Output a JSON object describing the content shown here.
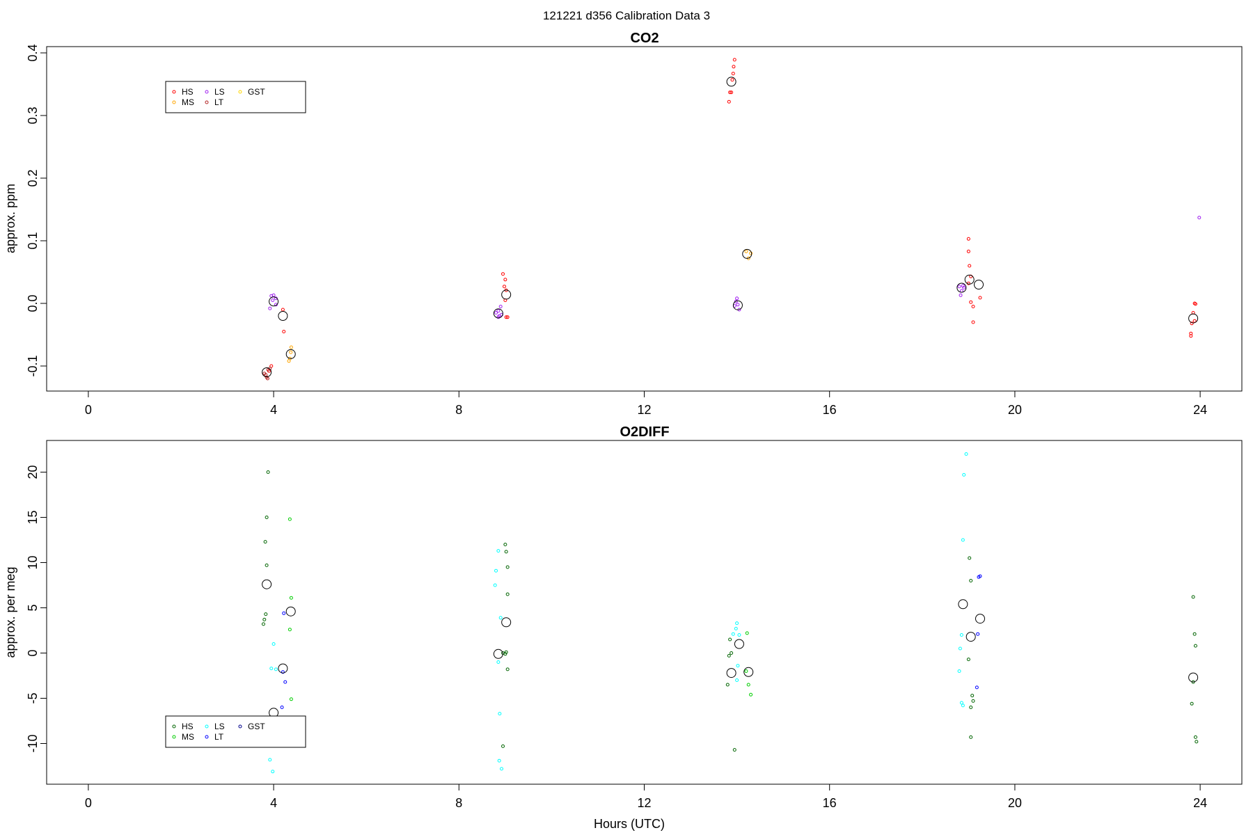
{
  "figure": {
    "title": "121221   d356   Calibration Data 3",
    "xlabel": "Hours (UTC)"
  },
  "chart_data": [
    {
      "type": "scatter",
      "title": "CO2",
      "xlabel": "",
      "ylabel": "approx. ppm",
      "xlim": [
        -0.9,
        24.9
      ],
      "ylim": [
        -0.14,
        0.41
      ],
      "xticks": [
        0,
        4,
        8,
        12,
        16,
        20,
        24
      ],
      "xtick_labels": [
        "0",
        "4",
        "8",
        "12",
        "16",
        "20",
        "24"
      ],
      "yticks": [
        -0.1,
        0.0,
        0.1,
        0.2,
        0.3,
        0.4
      ],
      "ytick_labels": [
        "-0.1",
        "0.0",
        "0.1",
        "0.2",
        "0.3",
        "0.4"
      ],
      "grid": false,
      "legend": {
        "placement": "top-left",
        "entries": [
          {
            "name": "HS",
            "color": "#ff0000"
          },
          {
            "name": "LS",
            "color": "#a020f0"
          },
          {
            "name": "GST",
            "color": "#ffd700"
          },
          {
            "name": "MS",
            "color": "#ffa500"
          },
          {
            "name": "LT",
            "color": "#b22222"
          }
        ]
      },
      "series": [
        {
          "name": "HS",
          "color": "#ff0000",
          "points": [
            [
              3.9,
              -0.108
            ],
            [
              3.95,
              -0.1
            ],
            [
              4.2,
              -0.01
            ],
            [
              4.22,
              -0.045
            ],
            [
              8.95,
              0.047
            ],
            [
              9.0,
              0.038
            ],
            [
              8.98,
              0.027
            ],
            [
              9.02,
              0.021
            ],
            [
              9.0,
              0.005
            ],
            [
              9.02,
              -0.022
            ],
            [
              9.05,
              -0.022
            ],
            [
              13.95,
              0.389
            ],
            [
              13.93,
              0.378
            ],
            [
              13.92,
              0.367
            ],
            [
              13.9,
              0.357
            ],
            [
              13.85,
              0.337
            ],
            [
              13.88,
              0.337
            ],
            [
              13.83,
              0.322
            ],
            [
              19.0,
              0.103
            ],
            [
              19.0,
              0.083
            ],
            [
              19.02,
              0.06
            ],
            [
              19.05,
              0.043
            ],
            [
              19.0,
              0.032
            ],
            [
              19.05,
              0.002
            ],
            [
              19.1,
              -0.03
            ],
            [
              19.25,
              0.009
            ],
            [
              19.1,
              -0.005
            ],
            [
              23.88,
              0.0
            ],
            [
              23.9,
              -0.001
            ],
            [
              23.85,
              -0.015
            ],
            [
              23.82,
              -0.032
            ],
            [
              23.8,
              -0.048
            ],
            [
              23.8,
              -0.052
            ],
            [
              23.88,
              -0.028
            ]
          ]
        },
        {
          "name": "MS",
          "color": "#ffa500",
          "points": [
            [
              4.33,
              -0.092
            ],
            [
              4.35,
              -0.088
            ],
            [
              4.37,
              -0.078
            ],
            [
              4.38,
              -0.07
            ],
            [
              14.2,
              0.083
            ],
            [
              14.25,
              0.072
            ],
            [
              14.3,
              0.08
            ]
          ]
        },
        {
          "name": "LS",
          "color": "#a020f0",
          "points": [
            [
              3.95,
              0.012
            ],
            [
              4.0,
              0.013
            ],
            [
              4.05,
              0.008
            ],
            [
              3.98,
              0.005
            ],
            [
              3.92,
              -0.008
            ],
            [
              4.05,
              -0.002
            ],
            [
              8.8,
              -0.015
            ],
            [
              8.85,
              -0.012
            ],
            [
              8.87,
              -0.02
            ],
            [
              8.9,
              -0.005
            ],
            [
              8.92,
              -0.018
            ],
            [
              8.85,
              -0.022
            ],
            [
              14.0,
              0.008
            ],
            [
              13.98,
              0.003
            ],
            [
              14.02,
              -0.002
            ],
            [
              14.05,
              -0.01
            ],
            [
              13.95,
              -0.004
            ],
            [
              18.8,
              0.027
            ],
            [
              18.85,
              0.02
            ],
            [
              18.9,
              0.025
            ],
            [
              18.83,
              0.013
            ],
            [
              18.88,
              0.028
            ],
            [
              23.98,
              0.137
            ]
          ]
        },
        {
          "name": "LT",
          "color": "#b22222",
          "points": [
            [
              3.8,
              -0.112
            ],
            [
              3.85,
              -0.118
            ],
            [
              3.88,
              -0.106
            ],
            [
              3.92,
              -0.104
            ],
            [
              3.83,
              -0.114
            ],
            [
              3.87,
              -0.12
            ]
          ]
        },
        {
          "name": "GST",
          "color": "#ffd700",
          "points": []
        }
      ],
      "means": [
        [
          3.85,
          -0.11
        ],
        [
          4.0,
          0.003
        ],
        [
          4.2,
          -0.02
        ],
        [
          4.37,
          -0.081
        ],
        [
          8.85,
          -0.016
        ],
        [
          9.02,
          0.014
        ],
        [
          13.88,
          0.354
        ],
        [
          14.02,
          -0.003
        ],
        [
          14.22,
          0.079
        ],
        [
          18.85,
          0.025
        ],
        [
          19.02,
          0.038
        ],
        [
          19.22,
          0.03
        ],
        [
          23.85,
          -0.024
        ]
      ]
    },
    {
      "type": "scatter",
      "title": "O2DIFF",
      "xlabel": "Hours (UTC)",
      "ylabel": "approx. per meg",
      "xlim": [
        -0.9,
        24.9
      ],
      "ylim": [
        -14.5,
        23.5
      ],
      "xticks": [
        0,
        4,
        8,
        12,
        16,
        20,
        24
      ],
      "xtick_labels": [
        "0",
        "4",
        "8",
        "12",
        "16",
        "20",
        "24"
      ],
      "yticks": [
        -10,
        -5,
        0,
        5,
        10,
        15,
        20
      ],
      "ytick_labels": [
        "-10",
        "-5",
        "0",
        "5",
        "10",
        "15",
        "20"
      ],
      "grid": false,
      "legend": {
        "placement": "bottom-left",
        "entries": [
          {
            "name": "HS",
            "color": "#006400"
          },
          {
            "name": "LS",
            "color": "#00ffff"
          },
          {
            "name": "GST",
            "color": "#00008b"
          },
          {
            "name": "MS",
            "color": "#00cd00"
          },
          {
            "name": "LT",
            "color": "#0000ff"
          }
        ]
      },
      "series": [
        {
          "name": "HS",
          "color": "#006400",
          "points": [
            [
              3.88,
              20.0
            ],
            [
              3.85,
              15.0
            ],
            [
              3.82,
              12.3
            ],
            [
              3.85,
              9.7
            ],
            [
              3.83,
              4.3
            ],
            [
              3.8,
              3.7
            ],
            [
              3.78,
              3.2
            ],
            [
              9.0,
              12.0
            ],
            [
              9.02,
              11.2
            ],
            [
              9.05,
              9.5
            ],
            [
              9.05,
              6.5
            ],
            [
              9.02,
              0.1
            ],
            [
              9.0,
              -0.1
            ],
            [
              8.95,
              0.0
            ],
            [
              9.05,
              -1.8
            ],
            [
              8.95,
              -10.3
            ],
            [
              13.85,
              1.5
            ],
            [
              13.88,
              0.0
            ],
            [
              13.83,
              -0.3
            ],
            [
              13.8,
              -3.5
            ],
            [
              13.95,
              -10.7
            ],
            [
              19.02,
              10.5
            ],
            [
              19.05,
              8.0
            ],
            [
              19.0,
              -0.7
            ],
            [
              19.08,
              -4.7
            ],
            [
              19.1,
              -5.3
            ],
            [
              19.05,
              -6.0
            ],
            [
              19.05,
              -9.3
            ],
            [
              23.85,
              6.2
            ],
            [
              23.88,
              2.1
            ],
            [
              23.9,
              0.8
            ],
            [
              23.85,
              -3.2
            ],
            [
              23.82,
              -5.6
            ],
            [
              23.9,
              -9.3
            ],
            [
              23.92,
              -9.8
            ]
          ]
        },
        {
          "name": "MS",
          "color": "#00cd00",
          "points": [
            [
              4.35,
              14.8
            ],
            [
              4.38,
              6.1
            ],
            [
              4.35,
              2.6
            ],
            [
              4.38,
              -5.1
            ],
            [
              14.22,
              2.2
            ],
            [
              14.25,
              -3.5
            ],
            [
              14.3,
              -4.6
            ],
            [
              14.2,
              -2.0
            ]
          ]
        },
        {
          "name": "LS",
          "color": "#00ffff",
          "points": [
            [
              4.0,
              1.0
            ],
            [
              3.95,
              -1.7
            ],
            [
              4.05,
              -1.8
            ],
            [
              3.92,
              -11.8
            ],
            [
              3.98,
              -13.1
            ],
            [
              8.85,
              11.3
            ],
            [
              8.8,
              9.1
            ],
            [
              8.78,
              7.5
            ],
            [
              8.9,
              3.9
            ],
            [
              8.85,
              -1.0
            ],
            [
              8.88,
              -6.7
            ],
            [
              8.87,
              -11.9
            ],
            [
              8.92,
              -12.8
            ],
            [
              14.0,
              3.3
            ],
            [
              13.98,
              2.7
            ],
            [
              14.05,
              2.0
            ],
            [
              13.92,
              2.1
            ],
            [
              14.02,
              -1.4
            ],
            [
              14.0,
              -3.0
            ],
            [
              18.95,
              22.0
            ],
            [
              18.9,
              19.7
            ],
            [
              18.88,
              12.5
            ],
            [
              18.85,
              2.0
            ],
            [
              18.82,
              0.5
            ],
            [
              18.8,
              -2.0
            ],
            [
              18.85,
              -5.5
            ],
            [
              18.88,
              -5.8
            ]
          ]
        },
        {
          "name": "LT",
          "color": "#0000ff",
          "points": [
            [
              4.22,
              4.4
            ],
            [
              4.2,
              -2.1
            ],
            [
              4.25,
              -3.2
            ],
            [
              4.18,
              -6.0
            ],
            [
              19.22,
              8.4
            ],
            [
              19.25,
              8.5
            ],
            [
              19.2,
              2.1
            ],
            [
              19.18,
              -3.8
            ]
          ]
        },
        {
          "name": "GST",
          "color": "#00008b",
          "points": []
        }
      ],
      "means": [
        [
          3.85,
          7.6
        ],
        [
          4.0,
          -6.6
        ],
        [
          4.2,
          -1.7
        ],
        [
          4.37,
          4.6
        ],
        [
          8.85,
          -0.1
        ],
        [
          9.02,
          3.4
        ],
        [
          13.88,
          -2.2
        ],
        [
          14.05,
          1.0
        ],
        [
          14.25,
          -2.1
        ],
        [
          18.88,
          5.4
        ],
        [
          19.05,
          1.8
        ],
        [
          19.25,
          3.8
        ],
        [
          23.85,
          -2.7
        ]
      ]
    }
  ]
}
